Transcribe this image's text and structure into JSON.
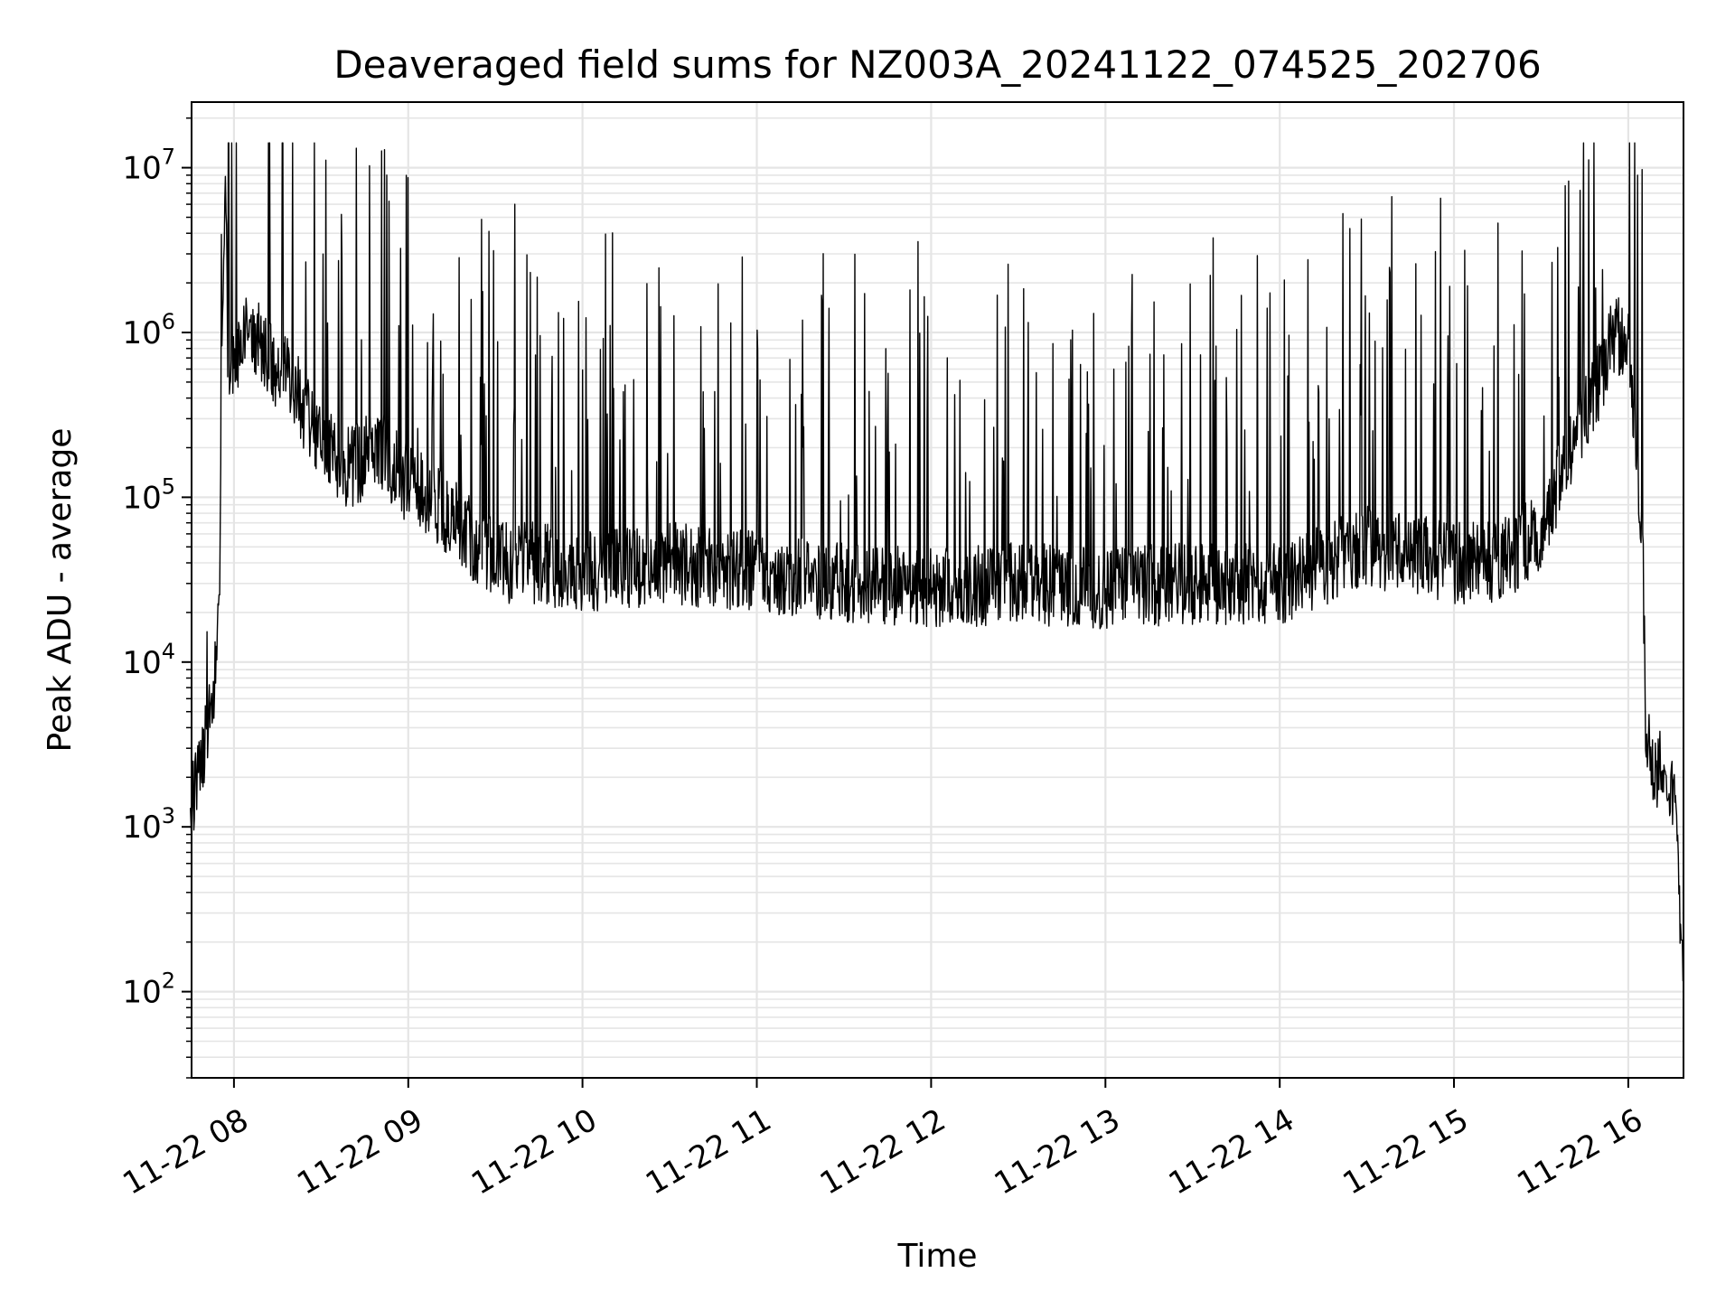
{
  "chart_data": {
    "type": "line",
    "title": "Deaveraged field sums for NZ003A_20241122_074525_202706",
    "xlabel": "Time",
    "ylabel": "Peak ADU - average",
    "yscale": "log",
    "ylim": [
      30,
      25000000
    ],
    "xlim": [
      "2024-11-22 07:45:25",
      "2024-11-22 16:19:00"
    ],
    "grid": true,
    "line_color": "#000000",
    "grid_color": "#e5e5e5",
    "x_ticks": [
      {
        "value": "2024-11-22 08:00",
        "label": "11-22 08"
      },
      {
        "value": "2024-11-22 09:00",
        "label": "11-22 09"
      },
      {
        "value": "2024-11-22 10:00",
        "label": "11-22 10"
      },
      {
        "value": "2024-11-22 11:00",
        "label": "11-22 11"
      },
      {
        "value": "2024-11-22 12:00",
        "label": "11-22 12"
      },
      {
        "value": "2024-11-22 13:00",
        "label": "11-22 13"
      },
      {
        "value": "2024-11-22 14:00",
        "label": "11-22 14"
      },
      {
        "value": "2024-11-22 15:00",
        "label": "11-22 15"
      },
      {
        "value": "2024-11-22 16:00",
        "label": "11-22 16"
      }
    ],
    "y_ticks": [
      {
        "value": 100,
        "base": "10",
        "exp": "2"
      },
      {
        "value": 1000,
        "base": "10",
        "exp": "3"
      },
      {
        "value": 10000,
        "base": "10",
        "exp": "4"
      },
      {
        "value": 100000,
        "base": "10",
        "exp": "5"
      },
      {
        "value": 1000000,
        "base": "10",
        "exp": "6"
      },
      {
        "value": 10000000,
        "base": "10",
        "exp": "7"
      }
    ],
    "series": [
      {
        "x": [
          "2024-11-22 07:45",
          "2024-11-22 07:47",
          "2024-11-22 07:50",
          "2024-11-22 07:52",
          "2024-11-22 07:54",
          "2024-11-22 07:55",
          "2024-11-22 07:56",
          "2024-11-22 07:57",
          "2024-11-22 07:58",
          "2024-11-22 08:00",
          "2024-11-22 08:05",
          "2024-11-22 08:10",
          "2024-11-22 08:15",
          "2024-11-22 08:20",
          "2024-11-22 08:30",
          "2024-11-22 08:40",
          "2024-11-22 08:50",
          "2024-11-22 09:00",
          "2024-11-22 09:10",
          "2024-11-22 09:20",
          "2024-11-22 09:30",
          "2024-11-22 09:45",
          "2024-11-22 10:00",
          "2024-11-22 10:30",
          "2024-11-22 11:00",
          "2024-11-22 11:30",
          "2024-11-22 12:00",
          "2024-11-22 12:30",
          "2024-11-22 13:00",
          "2024-11-22 13:30",
          "2024-11-22 14:00",
          "2024-11-22 14:30",
          "2024-11-22 15:00",
          "2024-11-22 15:15",
          "2024-11-22 15:30",
          "2024-11-22 15:40",
          "2024-11-22 15:50",
          "2024-11-22 15:55",
          "2024-11-22 16:00",
          "2024-11-22 16:03",
          "2024-11-22 16:05",
          "2024-11-22 16:06",
          "2024-11-22 16:08",
          "2024-11-22 16:12",
          "2024-11-22 16:16",
          "2024-11-22 16:19"
        ],
        "y": [
          1000,
          2000,
          3000,
          5000,
          9000,
          30000,
          900000,
          13000000,
          600000,
          700000,
          1000000,
          800000,
          600000,
          500000,
          200000,
          150000,
          200000,
          120000,
          90000,
          60000,
          40000,
          40000,
          35000,
          40000,
          35000,
          30000,
          28000,
          30000,
          28000,
          30000,
          30000,
          50000,
          40000,
          40000,
          60000,
          200000,
          500000,
          1000000,
          800000,
          150000,
          50000,
          4000,
          2000,
          2500,
          1500,
          120
        ]
      }
    ]
  }
}
